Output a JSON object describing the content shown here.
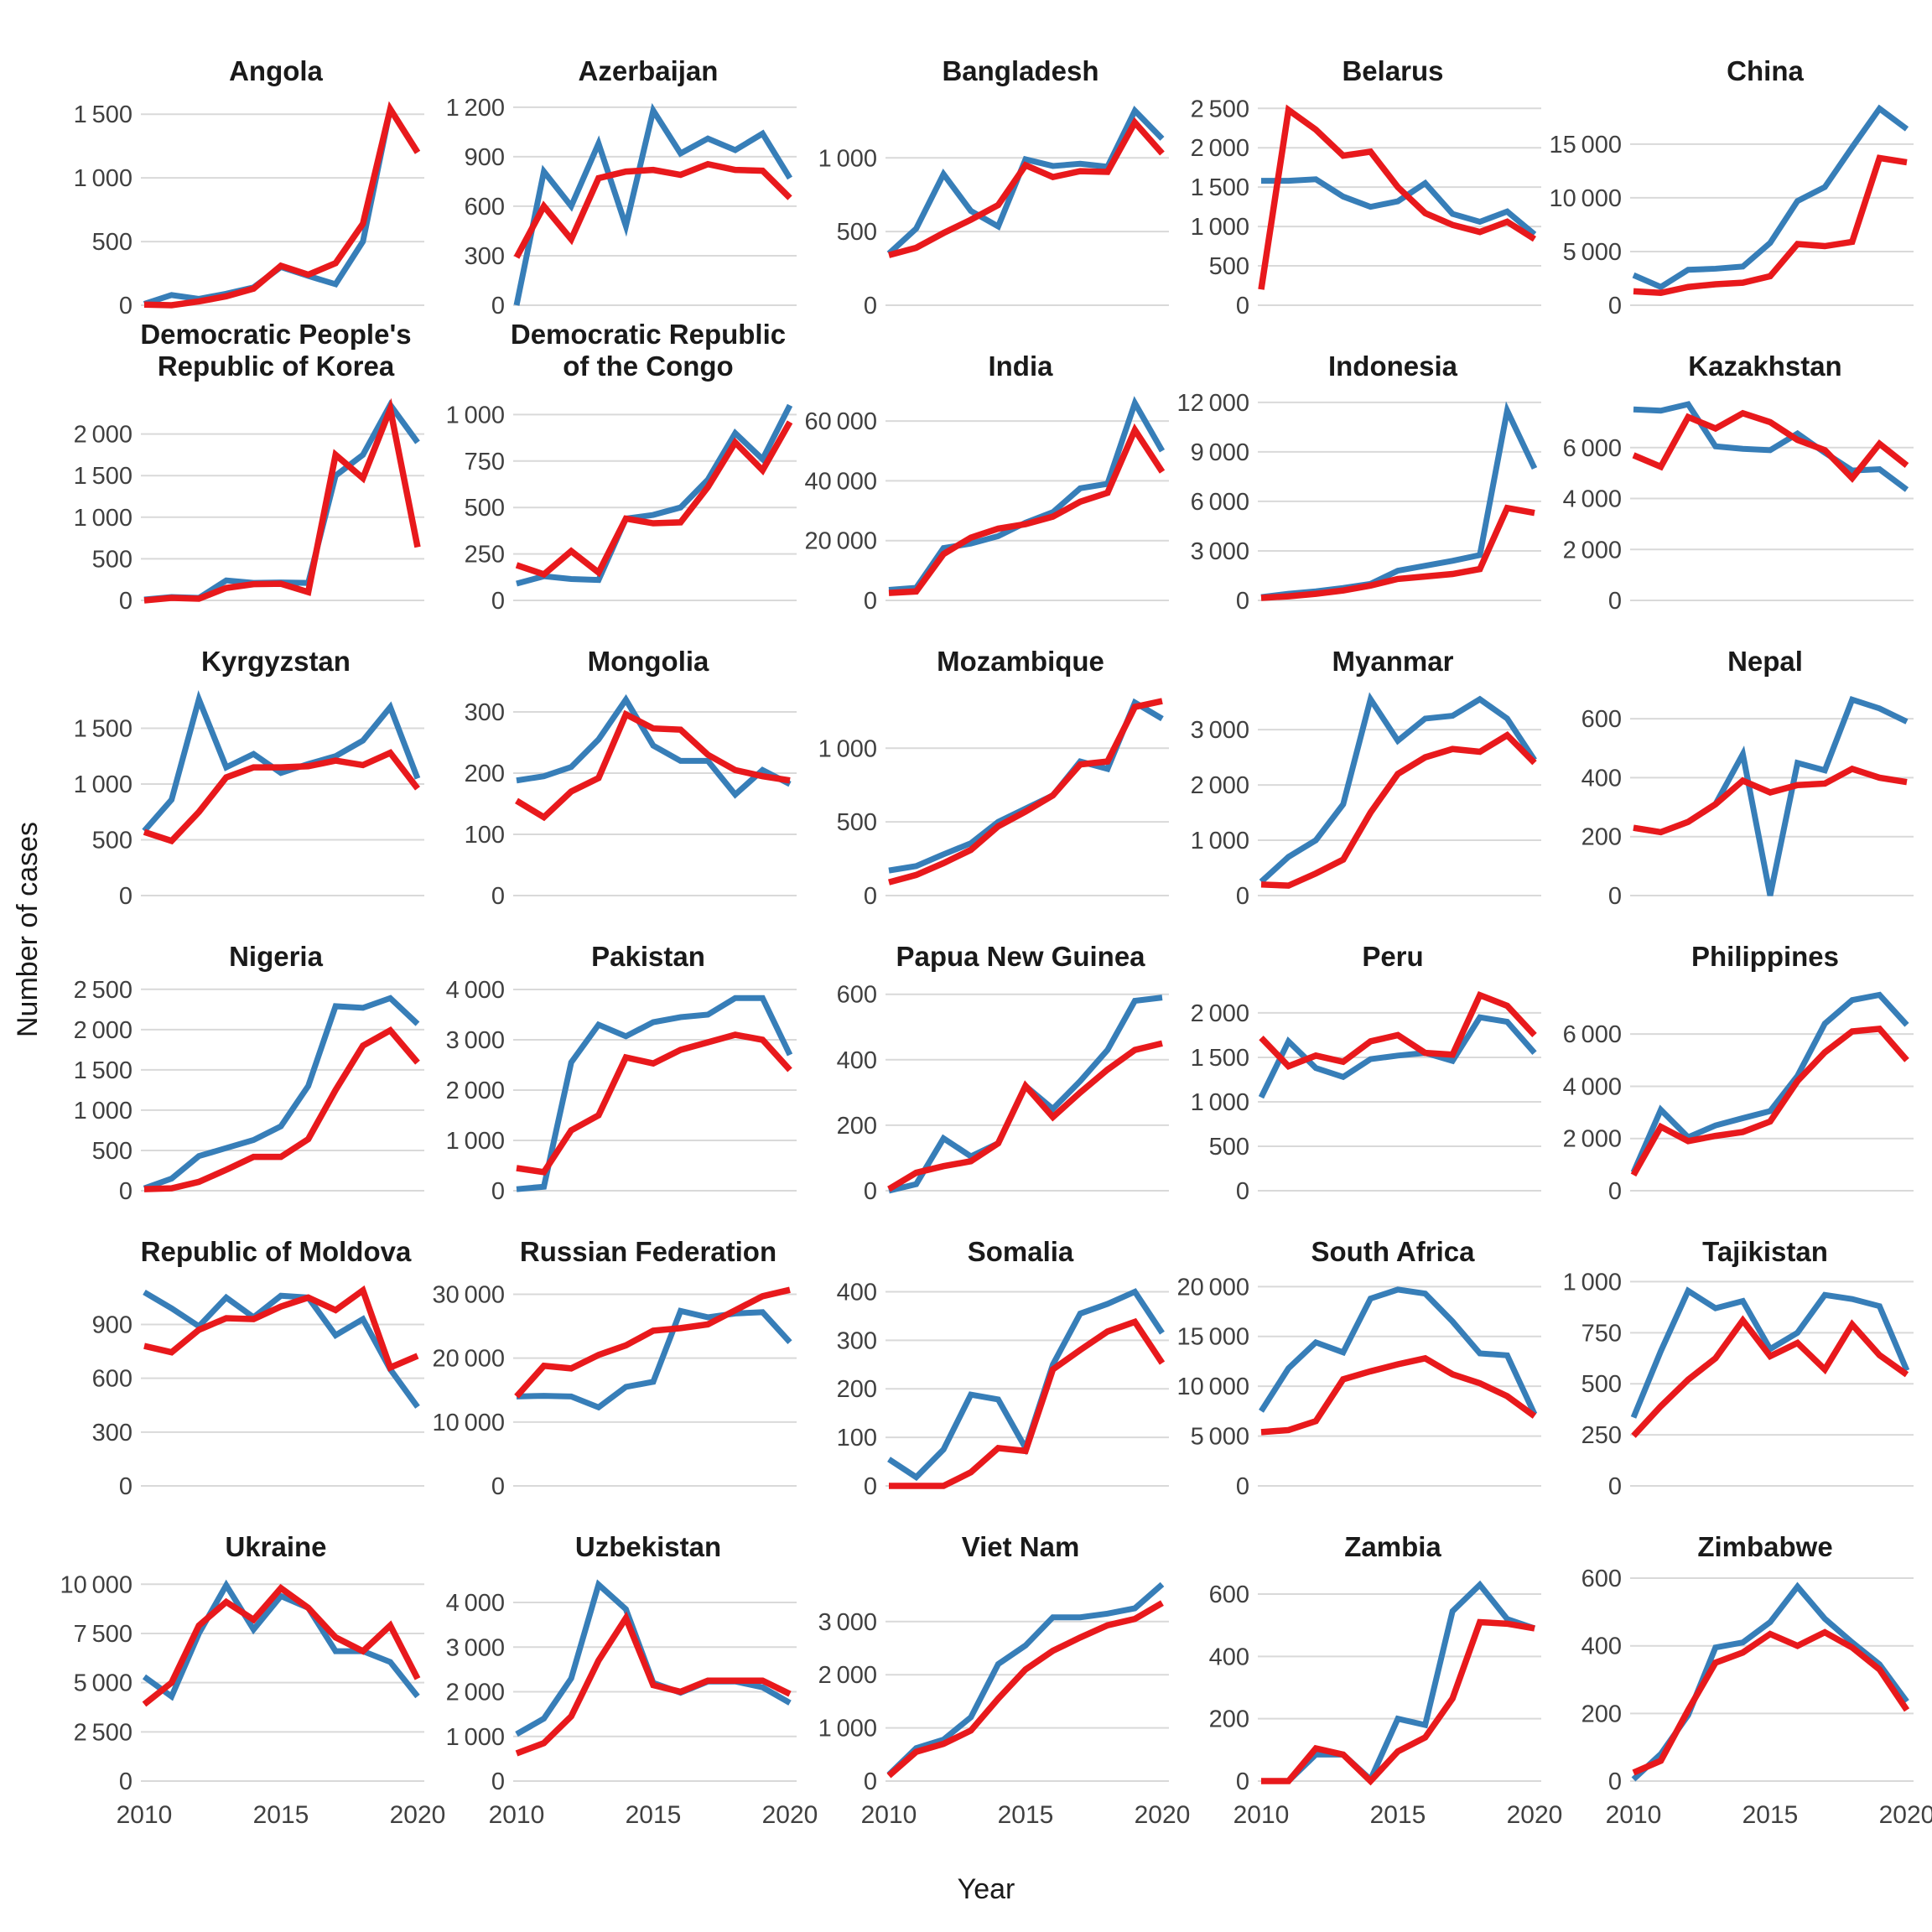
{
  "chart_data": {
    "type": "line",
    "title": "",
    "ylabel": "Number of cases",
    "xlabel": "Year",
    "x": [
      2010,
      2011,
      2012,
      2013,
      2014,
      2015,
      2016,
      2017,
      2018,
      2019,
      2020
    ],
    "x_ticks": [
      2010,
      2015,
      2020
    ],
    "grid": "horizontal-only",
    "legend": "none",
    "series_colors": {
      "blue": "#377eb8",
      "red": "#e8191c"
    },
    "panels": [
      {
        "title": "Angola",
        "slug": "angola",
        "ymax": 1620,
        "yticks": [
          0,
          500,
          1000,
          1500
        ],
        "blue": [
          10,
          80,
          50,
          90,
          140,
          300,
          230,
          165,
          500,
          1540,
          1200
        ],
        "red": [
          5,
          0,
          30,
          70,
          130,
          310,
          240,
          330,
          640,
          1540,
          1200
        ]
      },
      {
        "title": "Azerbaijan",
        "slug": "azerbaijan",
        "ymax": 1250,
        "yticks": [
          0,
          300,
          600,
          900,
          1200
        ],
        "blue": [
          0,
          810,
          600,
          980,
          480,
          1180,
          920,
          1010,
          940,
          1040,
          770
        ],
        "red": [
          290,
          600,
          400,
          770,
          810,
          820,
          790,
          855,
          820,
          815,
          650
        ]
      },
      {
        "title": "Bangladesh",
        "slug": "bangladesh",
        "ymax": 1400,
        "yticks": [
          0,
          500,
          1000
        ],
        "blue": [
          350,
          520,
          890,
          640,
          535,
          990,
          945,
          960,
          940,
          1320,
          1130
        ],
        "red": [
          340,
          390,
          490,
          580,
          680,
          950,
          870,
          910,
          905,
          1240,
          1030
        ]
      },
      {
        "title": "Belarus",
        "slug": "belarus",
        "ymax": 2620,
        "yticks": [
          0,
          500,
          1000,
          1500,
          2000,
          2500
        ],
        "blue": [
          1580,
          1580,
          1600,
          1380,
          1250,
          1320,
          1550,
          1160,
          1060,
          1190,
          900
        ],
        "red": [
          200,
          2480,
          2230,
          1900,
          1950,
          1500,
          1170,
          1020,
          930,
          1060,
          840
        ]
      },
      {
        "title": "China",
        "slug": "china",
        "ymax": 19200,
        "yticks": [
          0,
          5000,
          10000,
          15000
        ],
        "blue": [
          2800,
          1700,
          3300,
          3400,
          3600,
          5800,
          9700,
          11000,
          14700,
          18300,
          16400
        ],
        "red": [
          1300,
          1150,
          1700,
          1950,
          2100,
          2700,
          5700,
          5500,
          5900,
          13700,
          13300
        ]
      },
      {
        "title": "Democratic People's Republic of Korea",
        "slug": "dprk",
        "ymax": 2480,
        "yticks": [
          0,
          500,
          1000,
          1500,
          2000
        ],
        "blue": [
          10,
          40,
          30,
          240,
          210,
          215,
          210,
          1500,
          1750,
          2350,
          1900
        ],
        "red": [
          0,
          30,
          20,
          150,
          195,
          200,
          100,
          1750,
          1470,
          2300,
          640
        ]
      },
      {
        "title": "Democratic Republic of the Congo",
        "slug": "drc",
        "ymax": 1110,
        "yticks": [
          0,
          250,
          500,
          750,
          1000
        ],
        "blue": [
          90,
          130,
          115,
          110,
          440,
          460,
          500,
          650,
          900,
          760,
          1050
        ],
        "red": [
          190,
          140,
          265,
          150,
          440,
          415,
          420,
          610,
          850,
          700,
          960
        ]
      },
      {
        "title": "India",
        "slug": "india",
        "ymax": 69000,
        "yticks": [
          0,
          20000,
          40000,
          60000
        ],
        "blue": [
          3500,
          4200,
          17500,
          19000,
          21500,
          26000,
          29500,
          37500,
          39000,
          66000,
          50000
        ],
        "red": [
          2500,
          3000,
          15500,
          21000,
          24000,
          25500,
          28000,
          33000,
          36000,
          57000,
          43000
        ]
      },
      {
        "title": "Indonesia",
        "slug": "indonesia",
        "ymax": 12500,
        "yticks": [
          0,
          3000,
          6000,
          9000,
          12000
        ],
        "blue": [
          200,
          400,
          550,
          750,
          1000,
          1800,
          2100,
          2400,
          2750,
          11500,
          8000
        ],
        "red": [
          150,
          250,
          400,
          600,
          900,
          1300,
          1450,
          1600,
          1900,
          5600,
          5300
        ]
      },
      {
        "title": "Kazakhstan",
        "slug": "kazakhstan",
        "ymax": 8100,
        "yticks": [
          0,
          2000,
          4000,
          6000
        ],
        "blue": [
          7500,
          7450,
          7700,
          6050,
          5950,
          5900,
          6550,
          5800,
          5100,
          5150,
          4350
        ],
        "red": [
          5700,
          5250,
          7200,
          6750,
          7350,
          7000,
          6300,
          5900,
          4800,
          6150,
          5300
        ]
      },
      {
        "title": "Kyrgyzstan",
        "slug": "kyrgyzstan",
        "ymax": 1850,
        "yticks": [
          0,
          500,
          1000,
          1500
        ],
        "blue": [
          580,
          860,
          1760,
          1150,
          1270,
          1100,
          1180,
          1250,
          1390,
          1690,
          1050
        ],
        "red": [
          570,
          490,
          750,
          1060,
          1150,
          1150,
          1160,
          1210,
          1170,
          1280,
          960
        ]
      },
      {
        "title": "Mongolia",
        "slug": "mongolia",
        "ymax": 337,
        "yticks": [
          0,
          100,
          200,
          300
        ],
        "blue": [
          188,
          195,
          210,
          255,
          320,
          245,
          220,
          220,
          165,
          205,
          182
        ],
        "red": [
          155,
          128,
          170,
          192,
          296,
          273,
          271,
          230,
          205,
          195,
          188
        ]
      },
      {
        "title": "Mozambique",
        "slug": "mozambique",
        "ymax": 1400,
        "yticks": [
          0,
          500,
          1000
        ],
        "blue": [
          170,
          200,
          280,
          355,
          500,
          590,
          680,
          910,
          860,
          1310,
          1200
        ],
        "red": [
          90,
          140,
          220,
          310,
          470,
          570,
          680,
          890,
          910,
          1280,
          1320
        ]
      },
      {
        "title": "Myanmar",
        "slug": "myanmar",
        "ymax": 3730,
        "yticks": [
          0,
          1000,
          2000,
          3000
        ],
        "blue": [
          250,
          700,
          1000,
          1650,
          3550,
          2800,
          3200,
          3250,
          3550,
          3200,
          2450
        ],
        "red": [
          200,
          180,
          400,
          650,
          1500,
          2200,
          2500,
          2650,
          2600,
          2900,
          2400
        ]
      },
      {
        "title": "Nepal",
        "slug": "nepal",
        "ymax": 700,
        "yticks": [
          0,
          200,
          400,
          600
        ],
        "blue": [
          230,
          215,
          250,
          310,
          480,
          0,
          450,
          425,
          665,
          635,
          590
        ],
        "red": [
          230,
          215,
          250,
          310,
          390,
          350,
          375,
          380,
          430,
          400,
          385
        ]
      },
      {
        "title": "Nigeria",
        "slug": "nigeria",
        "ymax": 2560,
        "yticks": [
          0,
          500,
          1000,
          1500,
          2000,
          2500
        ],
        "blue": [
          30,
          150,
          430,
          530,
          630,
          800,
          1300,
          2290,
          2270,
          2390,
          2070
        ],
        "red": [
          20,
          30,
          110,
          260,
          420,
          420,
          640,
          1250,
          1800,
          1990,
          1590
        ]
      },
      {
        "title": "Pakistan",
        "slug": "pakistan",
        "ymax": 4100,
        "yticks": [
          0,
          1000,
          2000,
          3000,
          4000
        ],
        "blue": [
          30,
          80,
          2550,
          3300,
          3070,
          3350,
          3450,
          3500,
          3830,
          3830,
          2700
        ],
        "red": [
          450,
          370,
          1200,
          1500,
          2650,
          2530,
          2800,
          2950,
          3100,
          3000,
          2400
        ]
      },
      {
        "title": "Papua New Guinea",
        "slug": "papua-new-guinea",
        "ymax": 630,
        "yticks": [
          0,
          200,
          400,
          600
        ],
        "blue": [
          0,
          20,
          160,
          105,
          145,
          320,
          250,
          335,
          430,
          580,
          590
        ],
        "red": [
          5,
          55,
          75,
          90,
          145,
          320,
          225,
          300,
          370,
          430,
          450
        ]
      },
      {
        "title": "Peru",
        "slug": "peru",
        "ymax": 2320,
        "yticks": [
          0,
          500,
          1000,
          1500,
          2000
        ],
        "blue": [
          1050,
          1680,
          1380,
          1280,
          1480,
          1520,
          1550,
          1460,
          1950,
          1900,
          1550
        ],
        "red": [
          1720,
          1400,
          1520,
          1450,
          1680,
          1750,
          1550,
          1530,
          2200,
          2080,
          1750
        ]
      },
      {
        "title": "Philippines",
        "slug": "philippines",
        "ymax": 7900,
        "yticks": [
          0,
          2000,
          4000,
          6000
        ],
        "blue": [
          700,
          3100,
          2050,
          2500,
          2780,
          3050,
          4400,
          6400,
          7300,
          7500,
          6350
        ],
        "red": [
          600,
          2450,
          1900,
          2100,
          2250,
          2650,
          4200,
          5300,
          6100,
          6200,
          5000
        ]
      },
      {
        "title": "Republic of Moldova",
        "slug": "republic-of-moldova",
        "ymax": 1150,
        "yticks": [
          0,
          300,
          600,
          900
        ],
        "blue": [
          1080,
          990,
          890,
          1050,
          940,
          1060,
          1050,
          840,
          930,
          650,
          440
        ],
        "red": [
          780,
          745,
          870,
          935,
          930,
          1000,
          1050,
          980,
          1090,
          660,
          725
        ]
      },
      {
        "title": "Russian Federation",
        "slug": "russian-federation",
        "ymax": 32300,
        "yticks": [
          0,
          10000,
          20000,
          30000
        ],
        "blue": [
          14000,
          14100,
          14000,
          12300,
          15500,
          16300,
          27400,
          26400,
          27000,
          27200,
          22500
        ],
        "red": [
          14000,
          18800,
          18400,
          20500,
          22000,
          24300,
          24700,
          25300,
          27500,
          29700,
          30700
        ]
      },
      {
        "title": "Somalia",
        "slug": "somalia",
        "ymax": 425,
        "yticks": [
          0,
          100,
          200,
          300,
          400
        ],
        "blue": [
          55,
          18,
          75,
          188,
          178,
          78,
          250,
          355,
          375,
          400,
          315
        ],
        "red": [
          0,
          0,
          0,
          28,
          78,
          72,
          240,
          280,
          318,
          338,
          253
        ]
      },
      {
        "title": "South Africa",
        "slug": "south-africa",
        "ymax": 20700,
        "yticks": [
          0,
          5000,
          10000,
          15000,
          20000
        ],
        "blue": [
          7500,
          11800,
          14400,
          13400,
          18800,
          19700,
          19300,
          16500,
          13300,
          13100,
          7200
        ],
        "red": [
          5400,
          5600,
          6500,
          10700,
          11500,
          12200,
          12800,
          11200,
          10300,
          9000,
          7000
        ]
      },
      {
        "title": "Tajikistan",
        "slug": "tajikistan",
        "ymax": 1010,
        "yticks": [
          0,
          250,
          500,
          750,
          1000
        ],
        "blue": [
          335,
          660,
          955,
          870,
          905,
          670,
          750,
          935,
          915,
          880,
          565
        ],
        "red": [
          245,
          390,
          520,
          625,
          810,
          635,
          700,
          570,
          790,
          640,
          545
        ]
      },
      {
        "title": "Ukraine",
        "slug": "ukraine",
        "ymax": 10480,
        "yticks": [
          0,
          2500,
          5000,
          7500,
          10000
        ],
        "blue": [
          5300,
          4300,
          7500,
          9950,
          7700,
          9400,
          8800,
          6600,
          6600,
          6050,
          4300
        ],
        "red": [
          3900,
          5000,
          7900,
          9100,
          8200,
          9800,
          8800,
          7300,
          6600,
          7900,
          5200
        ]
      },
      {
        "title": "Uzbekistan",
        "slug": "uzbekistan",
        "ymax": 4620,
        "yticks": [
          0,
          1000,
          2000,
          3000,
          4000
        ],
        "blue": [
          1050,
          1400,
          2300,
          4400,
          3850,
          2200,
          1980,
          2230,
          2230,
          2100,
          1750
        ],
        "red": [
          620,
          850,
          1450,
          2700,
          3650,
          2150,
          2000,
          2250,
          2250,
          2250,
          1950
        ]
      },
      {
        "title": "Viet Nam",
        "slug": "viet-nam",
        "ymax": 3880,
        "yticks": [
          0,
          1000,
          2000,
          3000
        ],
        "blue": [
          120,
          620,
          780,
          1200,
          2200,
          2550,
          3080,
          3080,
          3150,
          3250,
          3700
        ],
        "red": [
          100,
          550,
          700,
          950,
          1550,
          2100,
          2450,
          2700,
          2930,
          3050,
          3350
        ]
      },
      {
        "title": "Zambia",
        "slug": "zambia",
        "ymax": 662,
        "yticks": [
          0,
          200,
          400,
          600
        ],
        "blue": [
          0,
          0,
          85,
          85,
          5,
          200,
          180,
          545,
          630,
          520,
          490
        ],
        "red": [
          0,
          0,
          105,
          85,
          0,
          95,
          140,
          265,
          510,
          505,
          490
        ]
      },
      {
        "title": "Zimbabwe",
        "slug": "zimbabwe",
        "ymax": 610,
        "yticks": [
          0,
          200,
          400,
          600
        ],
        "blue": [
          5,
          80,
          195,
          395,
          410,
          470,
          575,
          480,
          410,
          345,
          235
        ],
        "red": [
          25,
          60,
          210,
          350,
          380,
          435,
          400,
          440,
          395,
          330,
          210
        ]
      }
    ]
  }
}
